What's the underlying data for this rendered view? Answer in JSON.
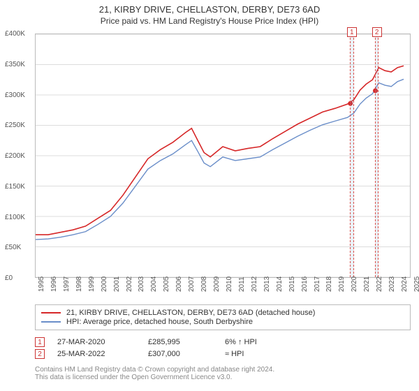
{
  "title": "21, KIRBY DRIVE, CHELLASTON, DERBY, DE73 6AD",
  "subtitle": "Price paid vs. HM Land Registry's House Price Index (HPI)",
  "chart": {
    "type": "line",
    "background_color": "#ffffff",
    "grid_color": "#dddddd",
    "border_color": "#bbbbbb",
    "xlim": [
      1995,
      2025
    ],
    "ylim": [
      0,
      400000
    ],
    "ytick_step": 50000,
    "ytick_labels": [
      "£0",
      "£50K",
      "£100K",
      "£150K",
      "£200K",
      "£250K",
      "£300K",
      "£350K",
      "£400K"
    ],
    "xticks": [
      1995,
      1996,
      1997,
      1998,
      1999,
      2000,
      2001,
      2002,
      2003,
      2004,
      2005,
      2006,
      2007,
      2008,
      2009,
      2010,
      2011,
      2012,
      2013,
      2014,
      2015,
      2016,
      2017,
      2018,
      2019,
      2020,
      2021,
      2022,
      2023,
      2024,
      2025
    ],
    "label_fontsize": 10,
    "label_color": "#555555",
    "series": [
      {
        "name": "price_paid",
        "label": "21, KIRBY DRIVE, CHELLASTON, DERBY, DE73 6AD (detached house)",
        "color": "#d62728",
        "width": 1.6,
        "data": [
          [
            1995,
            70000
          ],
          [
            1996,
            70000
          ],
          [
            1997,
            74000
          ],
          [
            1998,
            78000
          ],
          [
            1999,
            84000
          ],
          [
            2000,
            97000
          ],
          [
            2001,
            110000
          ],
          [
            2002,
            135000
          ],
          [
            2003,
            165000
          ],
          [
            2004,
            195000
          ],
          [
            2005,
            210000
          ],
          [
            2006,
            222000
          ],
          [
            2007,
            238000
          ],
          [
            2007.5,
            245000
          ],
          [
            2008,
            225000
          ],
          [
            2008.5,
            205000
          ],
          [
            2009,
            198000
          ],
          [
            2010,
            215000
          ],
          [
            2011,
            208000
          ],
          [
            2012,
            212000
          ],
          [
            2013,
            215000
          ],
          [
            2014,
            228000
          ],
          [
            2015,
            240000
          ],
          [
            2016,
            252000
          ],
          [
            2017,
            262000
          ],
          [
            2018,
            272000
          ],
          [
            2019,
            278000
          ],
          [
            2020,
            285000
          ],
          [
            2020.5,
            292000
          ],
          [
            2021,
            308000
          ],
          [
            2021.5,
            318000
          ],
          [
            2022,
            325000
          ],
          [
            2022.5,
            345000
          ],
          [
            2023,
            340000
          ],
          [
            2023.5,
            338000
          ],
          [
            2024,
            345000
          ],
          [
            2024.5,
            348000
          ]
        ]
      },
      {
        "name": "hpi",
        "label": "HPI: Average price, detached house, South Derbyshire",
        "color": "#6a8ec9",
        "width": 1.4,
        "data": [
          [
            1995,
            62000
          ],
          [
            1996,
            63000
          ],
          [
            1997,
            66000
          ],
          [
            1998,
            70000
          ],
          [
            1999,
            75000
          ],
          [
            2000,
            87000
          ],
          [
            2001,
            100000
          ],
          [
            2002,
            122000
          ],
          [
            2003,
            150000
          ],
          [
            2004,
            178000
          ],
          [
            2005,
            192000
          ],
          [
            2006,
            203000
          ],
          [
            2007,
            218000
          ],
          [
            2007.5,
            225000
          ],
          [
            2008,
            207000
          ],
          [
            2008.5,
            188000
          ],
          [
            2009,
            182000
          ],
          [
            2010,
            198000
          ],
          [
            2011,
            192000
          ],
          [
            2012,
            195000
          ],
          [
            2013,
            198000
          ],
          [
            2014,
            210000
          ],
          [
            2015,
            221000
          ],
          [
            2016,
            232000
          ],
          [
            2017,
            242000
          ],
          [
            2018,
            251000
          ],
          [
            2019,
            257000
          ],
          [
            2020,
            263000
          ],
          [
            2020.5,
            270000
          ],
          [
            2021,
            285000
          ],
          [
            2021.5,
            295000
          ],
          [
            2022,
            302000
          ],
          [
            2022.5,
            320000
          ],
          [
            2023,
            316000
          ],
          [
            2023.5,
            314000
          ],
          [
            2024,
            322000
          ],
          [
            2024.5,
            326000
          ]
        ]
      }
    ],
    "markers": [
      {
        "x": 2020.23,
        "y": 285995,
        "color": "#d62728"
      },
      {
        "x": 2022.23,
        "y": 307000,
        "color": "#d62728"
      }
    ],
    "annotations": [
      {
        "num": "1",
        "x_start": 2020.1,
        "x_end": 2020.4,
        "box_color": "#cc3333"
      },
      {
        "num": "2",
        "x_start": 2022.1,
        "x_end": 2022.4,
        "box_color": "#cc3333"
      }
    ]
  },
  "legend": {
    "item1_color": "#d62728",
    "item1_label": "21, KIRBY DRIVE, CHELLASTON, DERBY, DE73 6AD (detached house)",
    "item2_color": "#6a8ec9",
    "item2_label": "HPI: Average price, detached house, South Derbyshire"
  },
  "transactions": [
    {
      "num": "1",
      "date": "27-MAR-2020",
      "price": "£285,995",
      "note": "6% ↑ HPI"
    },
    {
      "num": "2",
      "date": "25-MAR-2022",
      "price": "£307,000",
      "note": "≈ HPI"
    }
  ],
  "footer": {
    "line1": "Contains HM Land Registry data © Crown copyright and database right 2024.",
    "line2": "This data is licensed under the Open Government Licence v3.0."
  }
}
